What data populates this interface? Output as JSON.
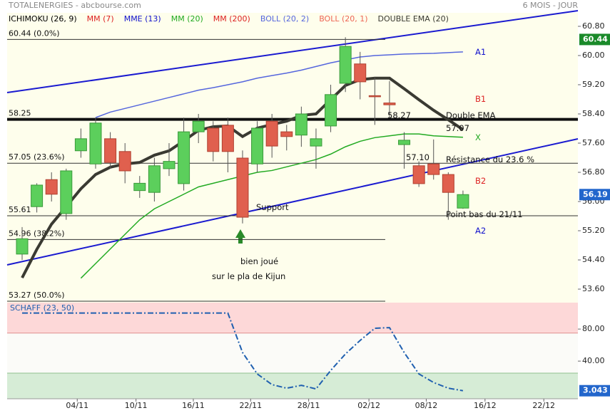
{
  "header": {
    "title": "TOTALENERGIES - abcbourse.com",
    "period": "6 MOIS - JOUR"
  },
  "chart_data": [
    {
      "type": "candlestick",
      "series": [
        {
          "name": "ICHIMOKU (26, 9)",
          "color": "#000000"
        },
        {
          "name": "MM (7)",
          "color": "#dd2222"
        },
        {
          "name": "MME (13)",
          "color": "#1010cc"
        },
        {
          "name": "MM (20)",
          "color": "#22aa22",
          "values": [
            null,
            null,
            null,
            null,
            53.9,
            54.3,
            54.7,
            55.1,
            55.5,
            55.8,
            56.0,
            56.2,
            56.4,
            56.5,
            56.6,
            56.7,
            56.8,
            56.85,
            56.95,
            57.05,
            57.15,
            57.3,
            57.5,
            57.65,
            57.75,
            57.8,
            57.85,
            57.85,
            57.8,
            57.78,
            57.76
          ]
        },
        {
          "name": "MM (200)",
          "color": "#dd2222"
        },
        {
          "name": "BOLL (20, 2)",
          "color": "#5566dd",
          "values": [
            null,
            null,
            null,
            null,
            null,
            58.3,
            58.45,
            58.55,
            58.65,
            58.75,
            58.85,
            58.95,
            59.05,
            59.12,
            59.2,
            59.28,
            59.38,
            59.45,
            59.52,
            59.6,
            59.7,
            59.8,
            59.88,
            59.96,
            60.0,
            60.02,
            60.04,
            60.05,
            60.06,
            60.08,
            60.1
          ]
        },
        {
          "name": "BOLL (20, 1)",
          "color": "#ee6655"
        },
        {
          "name": "DOUBLE EMA (20)",
          "color": "#3a3a32",
          "values": [
            53.91,
            54.69,
            55.38,
            55.86,
            56.35,
            56.74,
            56.94,
            57.03,
            57.07,
            57.27,
            57.39,
            57.66,
            57.95,
            58.05,
            58.07,
            57.78,
            58.01,
            58.11,
            58.2,
            58.36,
            58.4,
            58.79,
            59.18,
            59.34,
            59.38,
            59.38,
            59.09,
            58.79,
            58.5,
            58.24,
            57.97
          ]
        }
      ],
      "open": [
        54.56,
        55.86,
        56.6,
        55.67,
        57.39,
        57.03,
        57.72,
        57.37,
        56.3,
        56.25,
        56.9,
        56.49,
        57.91,
        58.01,
        58.09,
        57.19,
        57.03,
        58.2,
        57.91,
        57.82,
        57.52,
        58.07,
        59.24,
        59.77,
        58.9,
        58.7,
        57.56,
        56.98,
        57.03,
        56.74,
        55.82
      ],
      "high": [
        55.3,
        56.5,
        56.8,
        56.9,
        58.0,
        58.3,
        57.9,
        57.6,
        56.7,
        57.2,
        57.6,
        58.3,
        58.4,
        58.2,
        58.3,
        57.4,
        58.2,
        58.4,
        58.1,
        58.6,
        58.0,
        59.2,
        60.5,
        60.1,
        59.4,
        59.3,
        57.9,
        57.1,
        57.7,
        56.8,
        56.3
      ],
      "low": [
        54.4,
        55.7,
        56.0,
        55.5,
        57.2,
        56.9,
        56.9,
        56.5,
        56.1,
        56.0,
        56.7,
        56.3,
        57.6,
        57.1,
        56.8,
        55.4,
        56.8,
        57.2,
        57.4,
        57.5,
        56.9,
        57.9,
        59.0,
        58.8,
        58.1,
        58.3,
        56.9,
        56.4,
        56.6,
        55.5,
        55.8
      ],
      "close": [
        54.98,
        56.45,
        56.2,
        56.84,
        57.72,
        58.15,
        57.07,
        56.84,
        56.5,
        56.98,
        57.1,
        57.91,
        58.2,
        57.37,
        57.37,
        55.57,
        58.01,
        57.52,
        57.78,
        58.4,
        57.72,
        58.93,
        60.25,
        59.28,
        58.87,
        58.65,
        57.68,
        56.49,
        56.74,
        56.25,
        56.19
      ],
      "up_color": "#5ccf5c",
      "down_color": "#e0604e",
      "ylim": [
        53.23,
        61.17
      ],
      "yticks": [
        {
          "value": 60.8,
          "label": "60.80"
        },
        {
          "value": 60.0,
          "label": "60.00"
        },
        {
          "value": 59.2,
          "label": "59.20"
        },
        {
          "value": 58.4,
          "label": "58.40"
        },
        {
          "value": 57.6,
          "label": "57.60"
        },
        {
          "value": 56.8,
          "label": "56.80"
        },
        {
          "value": 56.0,
          "label": "56.00"
        },
        {
          "value": 55.2,
          "label": "55.20"
        },
        {
          "value": 54.4,
          "label": "54.40"
        },
        {
          "value": 53.6,
          "label": "53.60"
        }
      ],
      "xlim": [
        -1.02,
        37.82
      ],
      "xticks": [
        {
          "value": 3.75,
          "label": "04/11"
        },
        {
          "value": 7.75,
          "label": "10/11"
        },
        {
          "value": 11.65,
          "label": "16/11"
        },
        {
          "value": 15.55,
          "label": "22/11"
        },
        {
          "value": 19.5,
          "label": "28/11"
        },
        {
          "value": 23.6,
          "label": "02/12"
        },
        {
          "value": 27.5,
          "label": "08/12"
        },
        {
          "value": 31.5,
          "label": "16/12"
        },
        {
          "value": 35.5,
          "label": "22/12"
        }
      ],
      "levels": [
        {
          "value": 60.44,
          "label": "60.44  (0.0%)",
          "full": false,
          "thick": false
        },
        {
          "value": 58.25,
          "label": "58.25",
          "full": true,
          "thick": true
        },
        {
          "value": 57.05,
          "label": "57.05  (23.6%)",
          "full": true,
          "thick": false
        },
        {
          "value": 55.61,
          "label": "55.61",
          "full": true,
          "thick": false
        },
        {
          "value": 54.96,
          "label": "54.96  (38.2%)",
          "full": false,
          "thick": false
        },
        {
          "value": 53.27,
          "label": "53.27  (50.0%)",
          "full": false,
          "thick": false
        }
      ],
      "annotations": {
        "a1": "A1",
        "b1": "B1",
        "x": "X",
        "b2": "B2",
        "a2": "A2",
        "v1": "58.27",
        "dema": "Double EMA",
        "v2": "57.07",
        "v3": "57.10",
        "res": "Résistance du 23.6 %",
        "support": "Support",
        "low": "Point bas du 21/11",
        "note1": "bien joué",
        "note2": "sur le pla de Kijun"
      }
    },
    {
      "type": "line",
      "title": "SCHAFF (23, 50)",
      "color": "#2060b0",
      "values": [
        100,
        100,
        100,
        100,
        100,
        100,
        100,
        100,
        100,
        100,
        100,
        100,
        100,
        100,
        100,
        50.7,
        24,
        10.7,
        6.2,
        9.8,
        5.3,
        28.4,
        48.9,
        65.8,
        81,
        81.8,
        50.7,
        24,
        13.3,
        6.2,
        3.043
      ],
      "zones": [
        25,
        75
      ],
      "ylim": [
        -7,
        113
      ],
      "yticks": [
        {
          "value": 80,
          "label": "80.00"
        },
        {
          "value": 40,
          "label": "40.00"
        }
      ]
    }
  ]
}
